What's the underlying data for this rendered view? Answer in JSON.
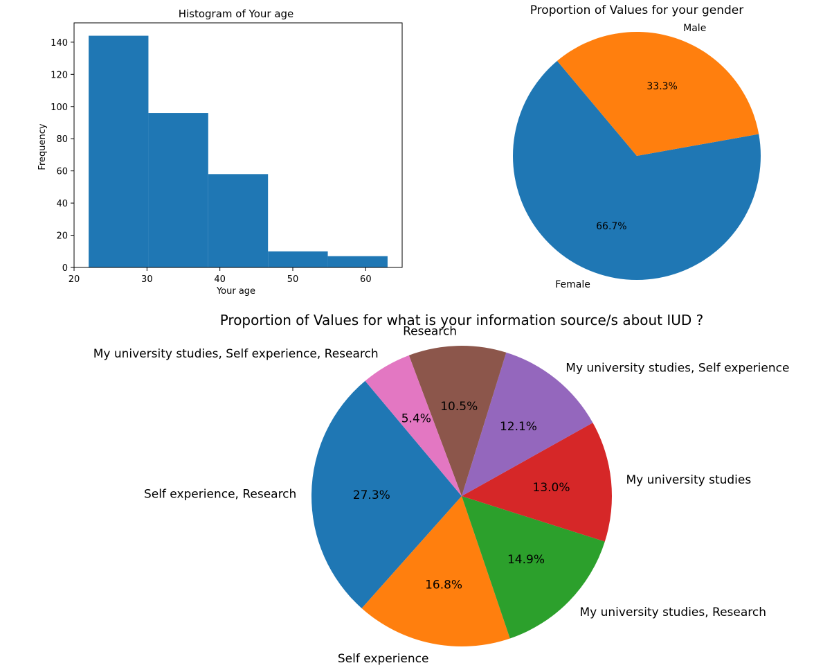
{
  "chart_data": [
    {
      "type": "bar",
      "title": "Histogram of Your age",
      "xlabel": "Your age",
      "ylabel": "Frequency",
      "xlim": [
        20,
        65
      ],
      "ylim": [
        0,
        152
      ],
      "xticks": [
        "20",
        "30",
        "40",
        "50",
        "60"
      ],
      "yticks": [
        "0",
        "20",
        "40",
        "60",
        "80",
        "100",
        "120",
        "140"
      ],
      "bins": [
        {
          "start": 22.0,
          "end": 30.2,
          "value": 144
        },
        {
          "start": 30.2,
          "end": 38.4,
          "value": 96
        },
        {
          "start": 38.4,
          "end": 46.6,
          "value": 58
        },
        {
          "start": 46.6,
          "end": 54.8,
          "value": 10
        },
        {
          "start": 54.8,
          "end": 63.0,
          "value": 7
        }
      ],
      "color": "#1f77b4"
    },
    {
      "type": "pie",
      "title": "Proportion of Values for your  gender",
      "slices": [
        {
          "label": "Female",
          "value": 66.7,
          "pct_label": "66.7%",
          "color": "#1f77b4"
        },
        {
          "label": "Male",
          "value": 33.3,
          "pct_label": "33.3%",
          "color": "#ff7f0e"
        }
      ]
    },
    {
      "type": "pie",
      "title": "Proportion of Values for what is your information source/s about IUD ?",
      "slices": [
        {
          "label": "Self experience, Research",
          "value": 27.3,
          "pct_label": "27.3%",
          "color": "#1f77b4"
        },
        {
          "label": "Self experience",
          "value": 16.8,
          "pct_label": "16.8%",
          "color": "#ff7f0e"
        },
        {
          "label": "My university studies, Research",
          "value": 14.9,
          "pct_label": "14.9%",
          "color": "#2ca02c"
        },
        {
          "label": "My university studies",
          "value": 13.0,
          "pct_label": "13.0%",
          "color": "#d62728"
        },
        {
          "label": "My university studies, Self experience",
          "value": 12.1,
          "pct_label": "12.1%",
          "color": "#9467bd"
        },
        {
          "label": "Research",
          "value": 10.5,
          "pct_label": "10.5%",
          "color": "#8c564b"
        },
        {
          "label": "My university studies, Self experience, Research",
          "value": 5.4,
          "pct_label": "5.4%",
          "color": "#e377c2"
        }
      ]
    }
  ]
}
